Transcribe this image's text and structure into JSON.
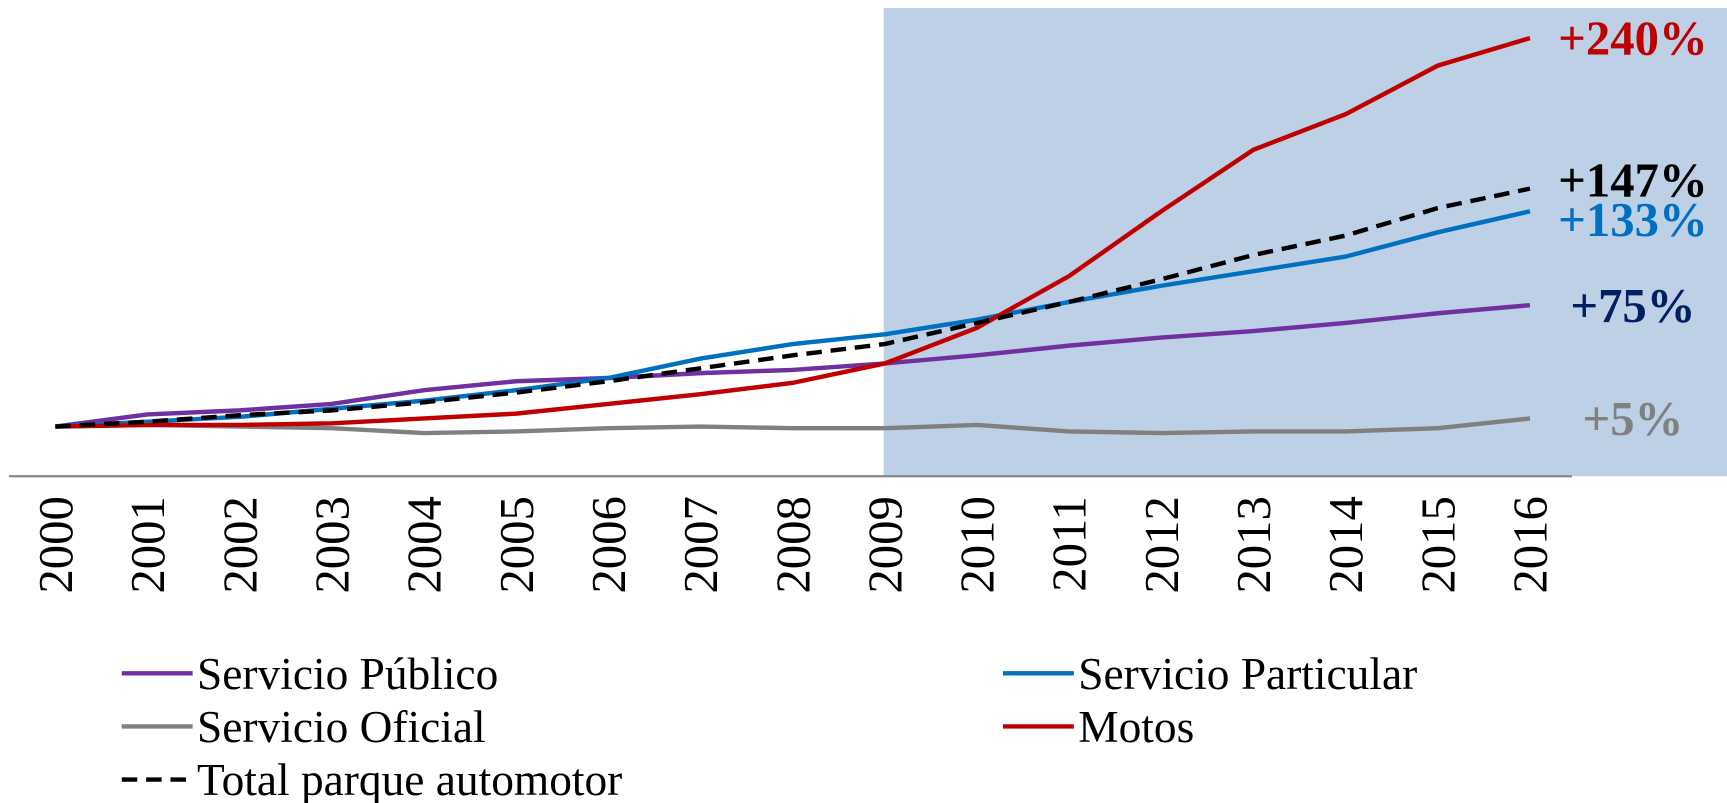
{
  "chart_data": {
    "type": "line",
    "categories": [
      "2000",
      "2001",
      "2002",
      "2003",
      "2004",
      "2005",
      "2006",
      "2007",
      "2008",
      "2009",
      "2010",
      "2011",
      "2012",
      "2013",
      "2014",
      "2015",
      "2016"
    ],
    "ylim": [
      -30,
      260
    ],
    "highlight": {
      "from": "2009",
      "color": "#bdd0e6"
    },
    "series": [
      {
        "name": "Servicio Público",
        "color": "#7030a0",
        "label_color": "#002060",
        "dash": false,
        "values": [
          0,
          7.5,
          10,
          14,
          22.5,
          28,
          30,
          33,
          35,
          39,
          44,
          50,
          55,
          59,
          64,
          70,
          75
        ],
        "value_labels": [
          null,
          null,
          null,
          null,
          null,
          null,
          null,
          null,
          null,
          null,
          null,
          null,
          null,
          null,
          null,
          null,
          "+75%"
        ]
      },
      {
        "name": "Servicio Particular",
        "color": "#0070c0",
        "label_color": "#0070c0",
        "dash": false,
        "values": [
          0,
          3,
          6,
          11,
          16,
          22.5,
          30,
          42,
          51,
          57,
          66,
          77,
          87,
          96,
          105,
          120,
          133
        ],
        "value_labels": [
          null,
          null,
          null,
          null,
          null,
          null,
          null,
          null,
          null,
          null,
          null,
          null,
          null,
          null,
          null,
          null,
          "+133%"
        ]
      },
      {
        "name": "Servicio Oficial",
        "color": "#808080",
        "label_color": "#808080",
        "dash": false,
        "values": [
          0,
          1,
          0,
          -1,
          -4,
          -3,
          -1,
          0,
          -1,
          -1,
          1,
          -3,
          -4,
          -3,
          -3,
          -1,
          5
        ],
        "value_labels": [
          null,
          null,
          null,
          null,
          null,
          null,
          null,
          null,
          null,
          null,
          null,
          null,
          null,
          null,
          null,
          null,
          "+5%"
        ]
      },
      {
        "name": "Motos",
        "color": "#c00000",
        "label_color": "#c00000",
        "dash": false,
        "values": [
          0,
          1,
          1,
          2,
          5,
          8,
          14,
          20,
          27,
          39,
          61,
          93,
          133,
          171,
          193,
          223,
          240
        ],
        "value_labels": [
          null,
          null,
          null,
          null,
          null,
          null,
          null,
          null,
          null,
          null,
          null,
          null,
          null,
          null,
          null,
          null,
          "+240%"
        ]
      },
      {
        "name": "Total parque automotor",
        "color": "#000000",
        "label_color": "#000000",
        "dash": true,
        "values": [
          0,
          3,
          7,
          10,
          15,
          21,
          28,
          36,
          44,
          51,
          64,
          77,
          91,
          106,
          118,
          135,
          147
        ],
        "value_labels": [
          null,
          null,
          null,
          null,
          null,
          null,
          null,
          null,
          null,
          null,
          null,
          null,
          null,
          null,
          null,
          null,
          "+147%"
        ]
      }
    ]
  }
}
